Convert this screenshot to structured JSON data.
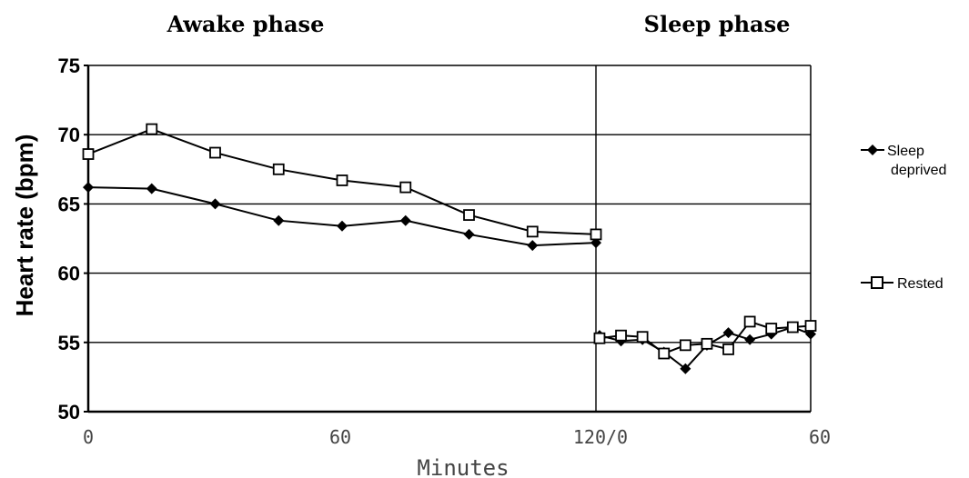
{
  "chart_data": {
    "type": "line",
    "phase_titles": [
      "Awake phase",
      "Sleep phase"
    ],
    "xlabel": "Minutes",
    "ylabel": "Heart rate (bpm)",
    "ylim": [
      50,
      75
    ],
    "y_ticks": [
      "75",
      "70",
      "65",
      "60",
      "55",
      "50"
    ],
    "x_tick_labels": [
      "0",
      "60",
      "120/0",
      "60"
    ],
    "grid": "horizontal",
    "legend_position": "right",
    "panels": [
      {
        "name": "Awake phase",
        "xlim": [
          0,
          120
        ],
        "x": [
          0,
          15,
          30,
          45,
          60,
          75,
          90,
          105,
          120
        ],
        "series": [
          {
            "name": "Sleep deprived",
            "marker": "diamond-filled",
            "values": [
              66.2,
              66.1,
              65.0,
              63.8,
              63.4,
              63.8,
              62.8,
              62.0,
              62.2
            ]
          },
          {
            "name": "Rested",
            "marker": "square-open",
            "values": [
              68.6,
              70.4,
              68.7,
              67.5,
              66.7,
              66.2,
              64.2,
              63.0,
              62.8
            ]
          }
        ]
      },
      {
        "name": "Sleep phase",
        "xlim": [
          0,
          60
        ],
        "x": [
          1,
          7,
          13,
          19,
          25,
          31,
          37,
          43,
          49,
          55,
          60
        ],
        "series": [
          {
            "name": "Sleep deprived",
            "marker": "diamond-filled",
            "values": [
              55.5,
              55.1,
              55.2,
              54.3,
              53.1,
              54.8,
              55.7,
              55.2,
              55.6,
              56.1,
              55.6
            ]
          },
          {
            "name": "Rested",
            "marker": "square-open",
            "values": [
              55.3,
              55.5,
              55.4,
              54.2,
              54.8,
              54.9,
              54.5,
              56.5,
              56.0,
              56.1,
              56.2
            ]
          }
        ]
      }
    ]
  },
  "legend": {
    "sleep_deprived_line1": "Sleep",
    "sleep_deprived_line2": "deprived",
    "rested": "Rested"
  }
}
